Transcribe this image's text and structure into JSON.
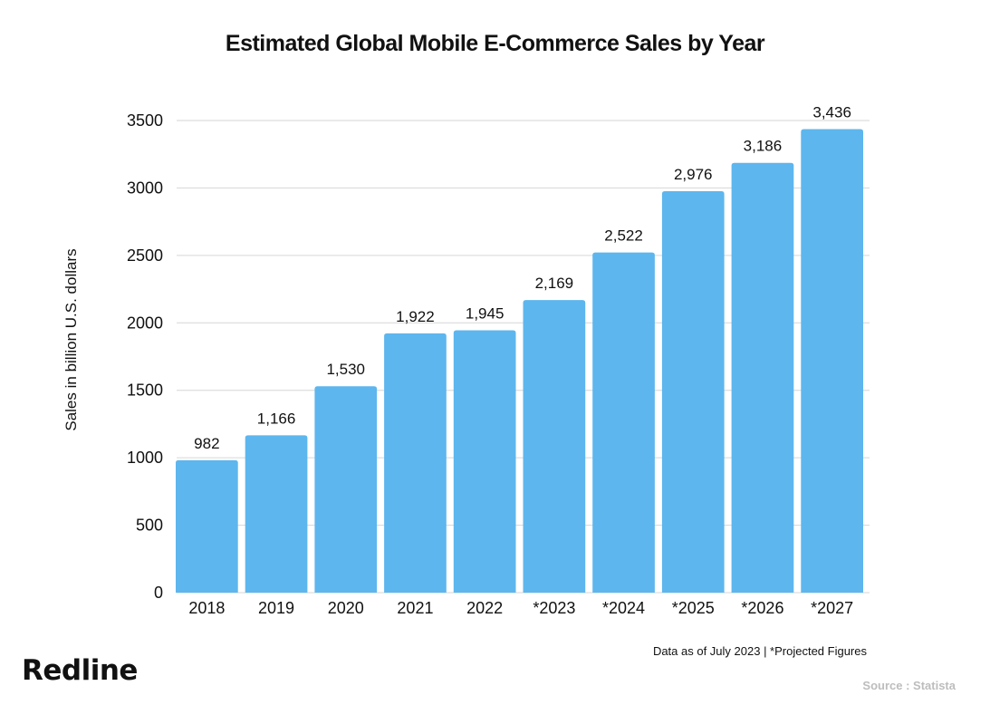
{
  "chart_data": {
    "type": "bar",
    "title": "Estimated Global Mobile E-Commerce Sales by Year",
    "xlabel": "",
    "ylabel": "Sales in billion U.S. dollars",
    "categories": [
      "2018",
      "2019",
      "2020",
      "2021",
      "2022",
      "*2023",
      "*2024",
      "*2025",
      "*2026",
      "*2027"
    ],
    "values": [
      982,
      1166,
      1530,
      1922,
      1945,
      2169,
      2522,
      2976,
      3186,
      3436
    ],
    "value_labels": [
      "982",
      "1,166",
      "1,530",
      "1,922",
      "1,945",
      "2,169",
      "2,522",
      "2,976",
      "3,186",
      "3,436"
    ],
    "ylim": [
      0,
      3500
    ],
    "yticks": [
      0,
      500,
      1000,
      1500,
      2000,
      2500,
      3000,
      3500
    ],
    "grid": true,
    "bar_color": "#5db6ee",
    "grid_color": "#d6d6d6"
  },
  "footnote": "Data as of July 2023 | *Projected Figures",
  "logo_text": "Redline",
  "source": "Source : Statista"
}
